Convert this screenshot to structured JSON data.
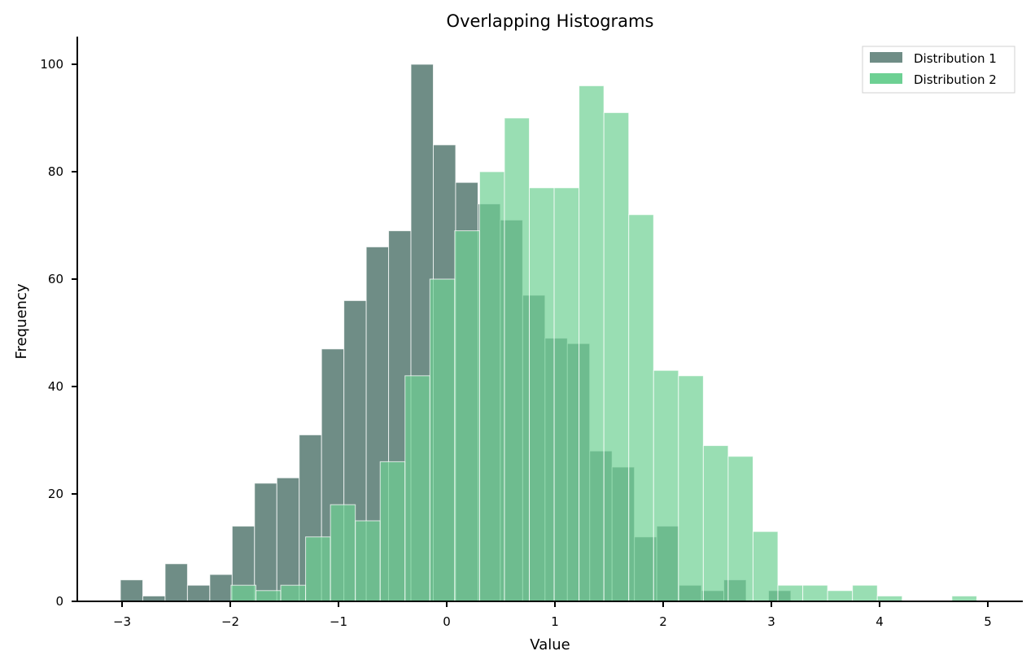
{
  "chart_data": {
    "type": "histogram",
    "title": "Overlapping Histograms",
    "xlabel": "Value",
    "ylabel": "Frequency",
    "xlim": [
      -3.45,
      5.32
    ],
    "ylim": [
      0,
      105
    ],
    "xticks": [
      -3,
      -2,
      -1,
      0,
      1,
      2,
      3,
      4,
      5
    ],
    "xtick_labels": [
      "−3",
      "−2",
      "−1",
      "0",
      "1",
      "2",
      "3",
      "4",
      "5"
    ],
    "yticks": [
      0,
      20,
      40,
      60,
      80,
      100
    ],
    "ytick_labels": [
      "0",
      "20",
      "40",
      "60",
      "80",
      "100"
    ],
    "grid": false,
    "legend_position": "upper right",
    "series": [
      {
        "name": "Distribution 1",
        "color": "#6f8d86",
        "bin_start": -3.015,
        "bin_width": 0.2065,
        "counts": [
          4,
          1,
          7,
          3,
          5,
          14,
          22,
          23,
          31,
          47,
          56,
          66,
          69,
          100,
          85,
          78,
          74,
          71,
          57,
          49,
          48,
          28,
          25,
          12,
          14,
          3,
          2,
          4,
          0,
          2
        ]
      },
      {
        "name": "Distribution 2",
        "color": "#6dd093",
        "bin_start": -1.993,
        "bin_width": 0.2297,
        "counts": [
          3,
          2,
          3,
          12,
          18,
          15,
          26,
          42,
          60,
          69,
          80,
          90,
          77,
          77,
          96,
          91,
          72,
          43,
          42,
          29,
          27,
          13,
          3,
          3,
          2,
          3,
          1,
          0,
          0,
          1
        ]
      }
    ]
  },
  "legend": {
    "items": [
      {
        "label": "Distribution 1",
        "color": "#6f8d86"
      },
      {
        "label": "Distribution 2",
        "color": "#6dd093"
      }
    ]
  }
}
